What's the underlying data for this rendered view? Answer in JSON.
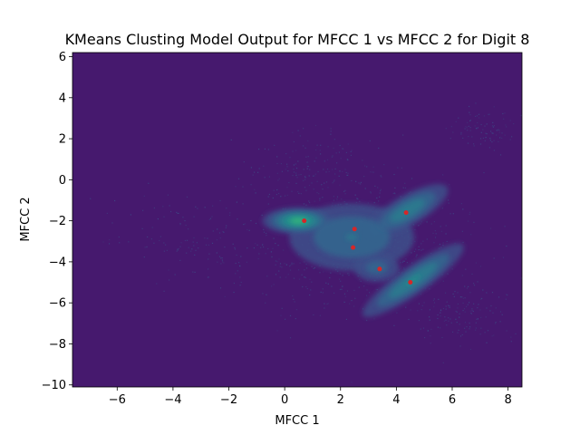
{
  "chart_data": {
    "type": "scatter",
    "title": "KMeans Clusting Model Output for MFCC 1 vs MFCC 2 for Digit 8",
    "xlabel": "MFCC 1",
    "ylabel": "MFCC 2",
    "xlim": [
      -7.6,
      8.5
    ],
    "ylim": [
      -10.1,
      6.2
    ],
    "x_ticks": [
      -6,
      -4,
      -2,
      0,
      2,
      4,
      6,
      8
    ],
    "x_tick_labels": [
      "−6",
      "−4",
      "−2",
      "0",
      "2",
      "4",
      "6",
      "8"
    ],
    "y_ticks": [
      -10,
      -8,
      -6,
      -4,
      -2,
      0,
      2,
      4,
      6
    ],
    "y_tick_labels": [
      "−10",
      "−8",
      "−6",
      "−4",
      "−2",
      "0",
      "2",
      "4",
      "6"
    ],
    "grid": false,
    "background_color": "#46196e",
    "marker_color": "#d62728",
    "cluster_centers": [
      {
        "x": 0.7,
        "y": -2.0
      },
      {
        "x": 2.5,
        "y": -2.4
      },
      {
        "x": 2.45,
        "y": -3.3
      },
      {
        "x": 3.4,
        "y": -4.35
      },
      {
        "x": 4.35,
        "y": -1.6
      },
      {
        "x": 4.5,
        "y": -5.0
      }
    ],
    "density_components": [
      {
        "x": 0.5,
        "y": -2.0,
        "sx": 0.7,
        "sy": 0.35,
        "angle": 0,
        "weight": 1.0
      },
      {
        "x": 2.4,
        "y": -2.8,
        "sx": 1.5,
        "sy": 1.1,
        "angle": 0,
        "weight": 0.55
      },
      {
        "x": 4.4,
        "y": -1.5,
        "sx": 1.0,
        "sy": 0.45,
        "angle": 30,
        "weight": 0.7
      },
      {
        "x": 4.6,
        "y": -4.9,
        "sx": 1.3,
        "sy": 0.4,
        "angle": 35,
        "weight": 0.75
      },
      {
        "x": 3.3,
        "y": -4.3,
        "sx": 0.6,
        "sy": 0.5,
        "angle": 0,
        "weight": 0.45
      }
    ],
    "density_colors": [
      "#3c4f8a",
      "#31668e",
      "#287d8e",
      "#21918c",
      "#35b779"
    ]
  }
}
